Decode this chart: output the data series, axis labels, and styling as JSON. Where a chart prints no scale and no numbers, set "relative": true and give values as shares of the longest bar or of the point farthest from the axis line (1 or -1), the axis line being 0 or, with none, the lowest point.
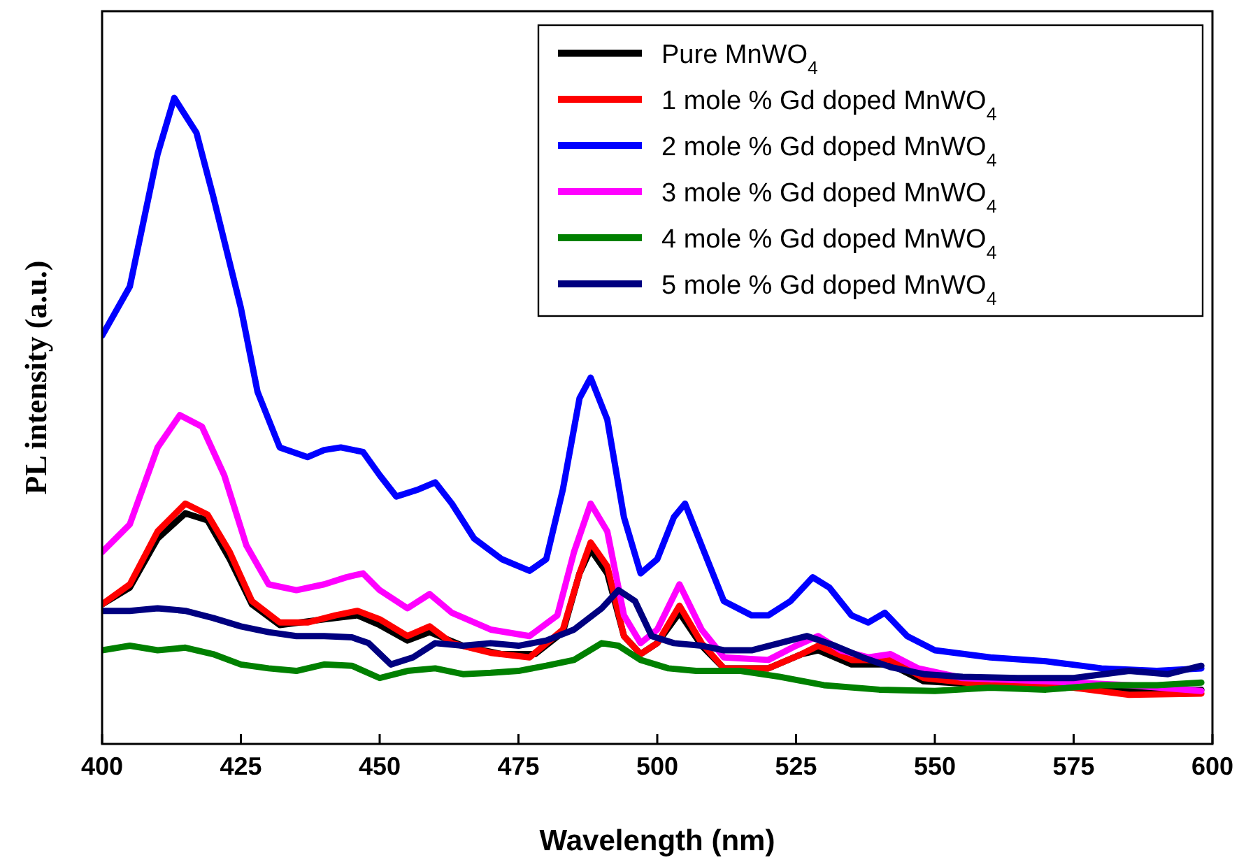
{
  "chart_data": {
    "type": "line",
    "xlabel": "Wavelength (nm)",
    "ylabel": "PL intensity (a.u.)",
    "relative": true,
    "xlim": [
      400,
      600
    ],
    "xticks": [
      400,
      425,
      450,
      475,
      500,
      525,
      550,
      575,
      600
    ],
    "legend": "top right",
    "grid": false,
    "line_style": "solid",
    "series": [
      {
        "name": "Pure MnWO$_{4}$",
        "color": "#000000",
        "x": [
          400,
          405,
          410,
          415,
          419,
          423,
          427,
          432,
          440,
          446,
          450,
          455,
          459,
          465,
          472,
          478,
          483,
          486,
          488,
          491,
          494,
          497,
          500,
          504,
          508,
          512,
          520,
          526,
          529,
          535,
          542,
          548,
          560,
          575,
          585,
          598
        ],
        "values": [
          0.216,
          0.242,
          0.318,
          0.357,
          0.346,
          0.286,
          0.216,
          0.184,
          0.193,
          0.199,
          0.184,
          0.16,
          0.173,
          0.152,
          0.139,
          0.139,
          0.173,
          0.264,
          0.301,
          0.264,
          0.167,
          0.139,
          0.156,
          0.203,
          0.152,
          0.117,
          0.117,
          0.139,
          0.145,
          0.123,
          0.123,
          0.097,
          0.091,
          0.087,
          0.082,
          0.084
        ]
      },
      {
        "name": "1 mole % Gd doped MnWO$_{4}$",
        "color": "#ff0000",
        "x": [
          400,
          405,
          410,
          415,
          419,
          423,
          427,
          432,
          437,
          442,
          446,
          450,
          455,
          459,
          463,
          470,
          477,
          483,
          486,
          488,
          491,
          494,
          497,
          500,
          504,
          508,
          512,
          520,
          526,
          529,
          535,
          542,
          548,
          560,
          575,
          585,
          598
        ],
        "values": [
          0.216,
          0.247,
          0.329,
          0.372,
          0.355,
          0.297,
          0.221,
          0.188,
          0.188,
          0.199,
          0.206,
          0.193,
          0.167,
          0.182,
          0.156,
          0.141,
          0.134,
          0.177,
          0.264,
          0.312,
          0.275,
          0.167,
          0.139,
          0.156,
          0.214,
          0.156,
          0.117,
          0.117,
          0.139,
          0.152,
          0.13,
          0.13,
          0.102,
          0.091,
          0.087,
          0.076,
          0.078
        ]
      },
      {
        "name": "2 mole % Gd doped MnWO$_{4}$",
        "color": "#0000ff",
        "x": [
          400,
          405,
          410,
          413,
          417,
          420,
          425,
          428,
          432,
          437,
          440,
          443,
          447,
          450,
          453,
          457,
          460,
          463,
          467,
          472,
          477,
          480,
          483,
          486,
          488,
          491,
          494,
          497,
          500,
          503,
          505,
          508,
          512,
          517,
          520,
          524,
          528,
          531,
          535,
          538,
          541,
          545,
          550,
          560,
          570,
          580,
          590,
          598
        ],
        "values": [
          0.632,
          0.708,
          0.913,
          1.0,
          0.946,
          0.848,
          0.675,
          0.545,
          0.459,
          0.444,
          0.455,
          0.459,
          0.452,
          0.416,
          0.383,
          0.394,
          0.405,
          0.372,
          0.318,
          0.286,
          0.268,
          0.286,
          0.394,
          0.535,
          0.567,
          0.502,
          0.351,
          0.264,
          0.286,
          0.351,
          0.372,
          0.307,
          0.221,
          0.199,
          0.199,
          0.221,
          0.258,
          0.242,
          0.199,
          0.188,
          0.203,
          0.167,
          0.145,
          0.134,
          0.128,
          0.117,
          0.113,
          0.117
        ]
      },
      {
        "name": "3 mole % Gd doped MnWO$_{4}$",
        "color": "#ff00ff",
        "x": [
          400,
          405,
          410,
          414,
          418,
          422,
          426,
          430,
          435,
          440,
          444,
          447,
          450,
          455,
          459,
          463,
          470,
          477,
          482,
          485,
          488,
          491,
          494,
          497,
          500,
          504,
          508,
          512,
          520,
          525,
          529,
          533,
          538,
          542,
          547,
          555,
          570,
          585,
          598
        ],
        "values": [
          0.297,
          0.34,
          0.459,
          0.509,
          0.491,
          0.416,
          0.307,
          0.247,
          0.238,
          0.247,
          0.258,
          0.264,
          0.238,
          0.21,
          0.232,
          0.203,
          0.177,
          0.167,
          0.199,
          0.297,
          0.372,
          0.329,
          0.199,
          0.156,
          0.177,
          0.247,
          0.177,
          0.134,
          0.13,
          0.152,
          0.167,
          0.145,
          0.134,
          0.139,
          0.117,
          0.102,
          0.097,
          0.091,
          0.082
        ]
      },
      {
        "name": "4 mole % Gd doped MnWO$_{4}$",
        "color": "#008000",
        "x": [
          400,
          405,
          410,
          415,
          420,
          425,
          430,
          435,
          440,
          445,
          450,
          455,
          460,
          465,
          470,
          475,
          480,
          485,
          490,
          493,
          497,
          502,
          507,
          515,
          522,
          530,
          540,
          550,
          560,
          570,
          580,
          590,
          598
        ],
        "values": [
          0.145,
          0.152,
          0.145,
          0.149,
          0.139,
          0.123,
          0.117,
          0.113,
          0.123,
          0.121,
          0.102,
          0.113,
          0.117,
          0.108,
          0.11,
          0.113,
          0.121,
          0.13,
          0.156,
          0.152,
          0.13,
          0.117,
          0.113,
          0.113,
          0.104,
          0.091,
          0.084,
          0.082,
          0.087,
          0.084,
          0.091,
          0.091,
          0.095
        ]
      },
      {
        "name": "5 mole % Gd doped MnWO$_{4}$",
        "color": "#000080",
        "x": [
          400,
          405,
          410,
          415,
          420,
          425,
          430,
          435,
          440,
          445,
          448,
          452,
          456,
          460,
          465,
          470,
          475,
          480,
          485,
          490,
          493,
          496,
          499,
          503,
          508,
          512,
          517,
          522,
          527,
          532,
          537,
          542,
          548,
          555,
          565,
          575,
          585,
          592,
          598
        ],
        "values": [
          0.206,
          0.206,
          0.21,
          0.206,
          0.195,
          0.182,
          0.173,
          0.167,
          0.167,
          0.165,
          0.156,
          0.123,
          0.134,
          0.156,
          0.152,
          0.156,
          0.152,
          0.16,
          0.177,
          0.21,
          0.238,
          0.221,
          0.167,
          0.156,
          0.152,
          0.145,
          0.145,
          0.156,
          0.167,
          0.152,
          0.134,
          0.119,
          0.108,
          0.104,
          0.102,
          0.102,
          0.113,
          0.108,
          0.121
        ]
      }
    ]
  }
}
